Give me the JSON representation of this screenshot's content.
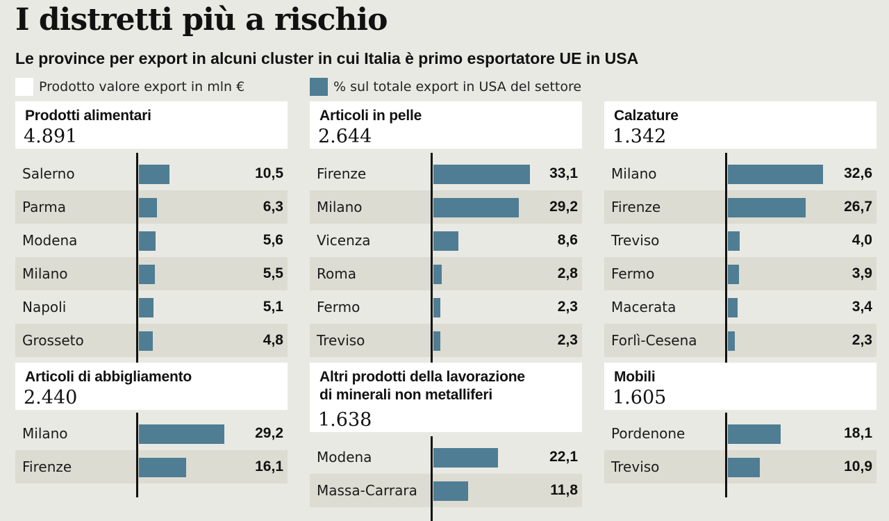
{
  "title": "I distretti più a rischio",
  "subtitle": "Le province per export in alcuni cluster in cui Italia è primo esportatore UE in USA",
  "legend": {
    "white": "Prodotto valore export in mln €",
    "bar": "% sul totale export in USA del settore"
  },
  "colors": {
    "bar": "#4f7d93",
    "background": "#e9e9e3",
    "shade": "#dcdcd3"
  },
  "chart_data": [
    {
      "type": "bar",
      "title": "Prodotti alimentari",
      "total": "4.891",
      "categories": [
        "Salerno",
        "Parma",
        "Modena",
        "Milano",
        "Napoli",
        "Grosseto"
      ],
      "values": [
        10.5,
        6.3,
        5.6,
        5.5,
        5.1,
        4.8
      ],
      "labels": [
        "10,5",
        "6,3",
        "5,6",
        "5,5",
        "5,1",
        "4,8"
      ]
    },
    {
      "type": "bar",
      "title": "Articoli in pelle",
      "total": "2.644",
      "categories": [
        "Firenze",
        "Milano",
        "Vicenza",
        "Roma",
        "Fermo",
        "Treviso"
      ],
      "values": [
        33.1,
        29.2,
        8.6,
        2.8,
        2.3,
        2.3
      ],
      "labels": [
        "33,1",
        "29,2",
        "8,6",
        "2,8",
        "2,3",
        "2,3"
      ]
    },
    {
      "type": "bar",
      "title": "Calzature",
      "total": "1.342",
      "categories": [
        "Milano",
        "Firenze",
        "Treviso",
        "Fermo",
        "Macerata",
        "Forlì-Cesena"
      ],
      "values": [
        32.6,
        26.7,
        4.0,
        3.9,
        3.4,
        2.3
      ],
      "labels": [
        "32,6",
        "26,7",
        "4,0",
        "3,9",
        "3,4",
        "2,3"
      ]
    },
    {
      "type": "bar",
      "title": "Articoli di abbigliamento",
      "total": "2.440",
      "categories": [
        "Milano",
        "Firenze"
      ],
      "values": [
        29.2,
        16.1
      ],
      "labels": [
        "29,2",
        "16,1"
      ]
    },
    {
      "type": "bar",
      "title": "Altri prodotti della lavorazione\ndi minerali non metalliferi",
      "total": "1.638",
      "categories": [
        "Modena",
        "Massa-Carrara"
      ],
      "values": [
        22.1,
        11.8
      ],
      "labels": [
        "22,1",
        "11,8"
      ]
    },
    {
      "type": "bar",
      "title": "Mobili",
      "total": "1.605",
      "categories": [
        "Pordenone",
        "Treviso"
      ],
      "values": [
        18.1,
        10.9
      ],
      "labels": [
        "18,1",
        "10,9"
      ]
    }
  ]
}
